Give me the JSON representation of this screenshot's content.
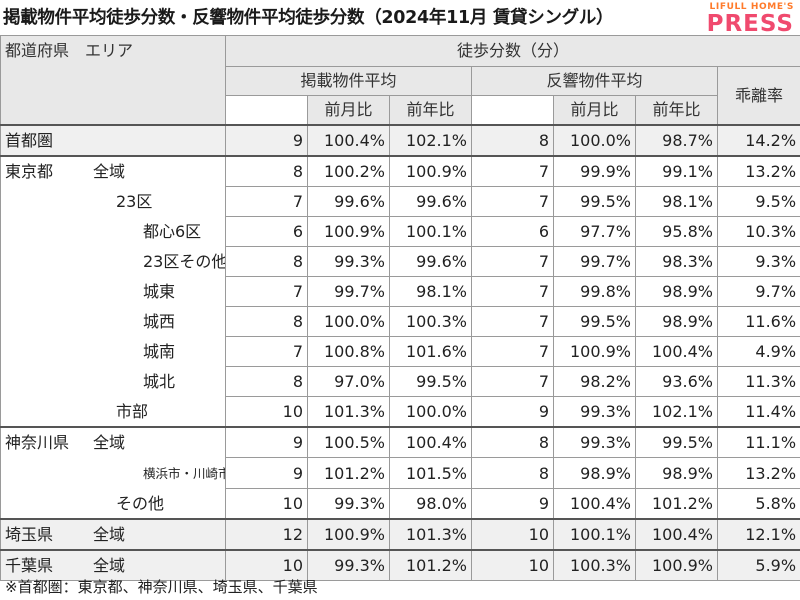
{
  "title": "掲載物件平均徒歩分数・反響物件平均徒歩分数（2024年11月 賃貸シングル）",
  "logo": {
    "line1": "LIFULL HOME'S",
    "line2": "PRESS"
  },
  "header": {
    "col_region": "都道府県　エリア",
    "col_walk": "徒歩分数（分）",
    "col_listed": "掲載物件平均",
    "col_response": "反響物件平均",
    "col_divergence": "乖離率",
    "col_mom": "前月比",
    "col_yoy": "前年比"
  },
  "rows": [
    {
      "pref": "首都圏",
      "area": "",
      "listed": "9",
      "listed_mom": "100.4%",
      "listed_yoy": "102.1%",
      "resp": "8",
      "resp_mom": "100.0%",
      "resp_yoy": "98.7%",
      "div": "14.2%"
    },
    {
      "pref": "東京都",
      "area": "全域",
      "listed": "8",
      "listed_mom": "100.2%",
      "listed_yoy": "100.9%",
      "resp": "7",
      "resp_mom": "99.9%",
      "resp_yoy": "99.1%",
      "div": "13.2%"
    },
    {
      "pref": "",
      "area": "23区",
      "listed": "7",
      "listed_mom": "99.6%",
      "listed_yoy": "99.6%",
      "resp": "7",
      "resp_mom": "99.5%",
      "resp_yoy": "98.1%",
      "div": "9.5%"
    },
    {
      "pref": "",
      "area": "都心6区",
      "listed": "6",
      "listed_mom": "100.9%",
      "listed_yoy": "100.1%",
      "resp": "6",
      "resp_mom": "97.7%",
      "resp_yoy": "95.8%",
      "div": "10.3%"
    },
    {
      "pref": "",
      "area": "23区その他",
      "listed": "8",
      "listed_mom": "99.3%",
      "listed_yoy": "99.6%",
      "resp": "7",
      "resp_mom": "99.7%",
      "resp_yoy": "98.3%",
      "div": "9.3%"
    },
    {
      "pref": "",
      "area": "城東",
      "listed": "7",
      "listed_mom": "99.7%",
      "listed_yoy": "98.1%",
      "resp": "7",
      "resp_mom": "99.8%",
      "resp_yoy": "98.9%",
      "div": "9.7%"
    },
    {
      "pref": "",
      "area": "城西",
      "listed": "8",
      "listed_mom": "100.0%",
      "listed_yoy": "100.3%",
      "resp": "7",
      "resp_mom": "99.5%",
      "resp_yoy": "98.9%",
      "div": "11.6%"
    },
    {
      "pref": "",
      "area": "城南",
      "listed": "7",
      "listed_mom": "100.8%",
      "listed_yoy": "101.6%",
      "resp": "7",
      "resp_mom": "100.9%",
      "resp_yoy": "100.4%",
      "div": "4.9%"
    },
    {
      "pref": "",
      "area": "城北",
      "listed": "8",
      "listed_mom": "97.0%",
      "listed_yoy": "99.5%",
      "resp": "7",
      "resp_mom": "98.2%",
      "resp_yoy": "93.6%",
      "div": "11.3%"
    },
    {
      "pref": "",
      "area": "市部",
      "listed": "10",
      "listed_mom": "101.3%",
      "listed_yoy": "100.0%",
      "resp": "9",
      "resp_mom": "99.3%",
      "resp_yoy": "102.1%",
      "div": "11.4%"
    },
    {
      "pref": "神奈川県",
      "area": "全域",
      "listed": "9",
      "listed_mom": "100.5%",
      "listed_yoy": "100.4%",
      "resp": "8",
      "resp_mom": "99.3%",
      "resp_yoy": "99.5%",
      "div": "11.1%"
    },
    {
      "pref": "",
      "area": "横浜市・川崎市",
      "listed": "9",
      "listed_mom": "101.2%",
      "listed_yoy": "101.5%",
      "resp": "8",
      "resp_mom": "98.9%",
      "resp_yoy": "98.9%",
      "div": "13.2%"
    },
    {
      "pref": "",
      "area": "その他",
      "listed": "10",
      "listed_mom": "99.3%",
      "listed_yoy": "98.0%",
      "resp": "9",
      "resp_mom": "100.4%",
      "resp_yoy": "101.2%",
      "div": "5.8%"
    },
    {
      "pref": "埼玉県",
      "area": "全域",
      "listed": "12",
      "listed_mom": "100.9%",
      "listed_yoy": "101.3%",
      "resp": "10",
      "resp_mom": "100.1%",
      "resp_yoy": "100.4%",
      "div": "12.1%"
    },
    {
      "pref": "千葉県",
      "area": "全域",
      "listed": "10",
      "listed_mom": "99.3%",
      "listed_yoy": "101.2%",
      "resp": "10",
      "resp_mom": "100.3%",
      "resp_yoy": "100.9%",
      "div": "5.9%"
    }
  ],
  "footnote": "※首都圏：東京都、神奈川県、埼玉県、千葉県",
  "colors": {
    "header_bg": "#e8e8e8",
    "group_bg": "#f0f0f0",
    "logo_orange": "#ff7a2a",
    "logo_pink": "#f04a6e"
  }
}
